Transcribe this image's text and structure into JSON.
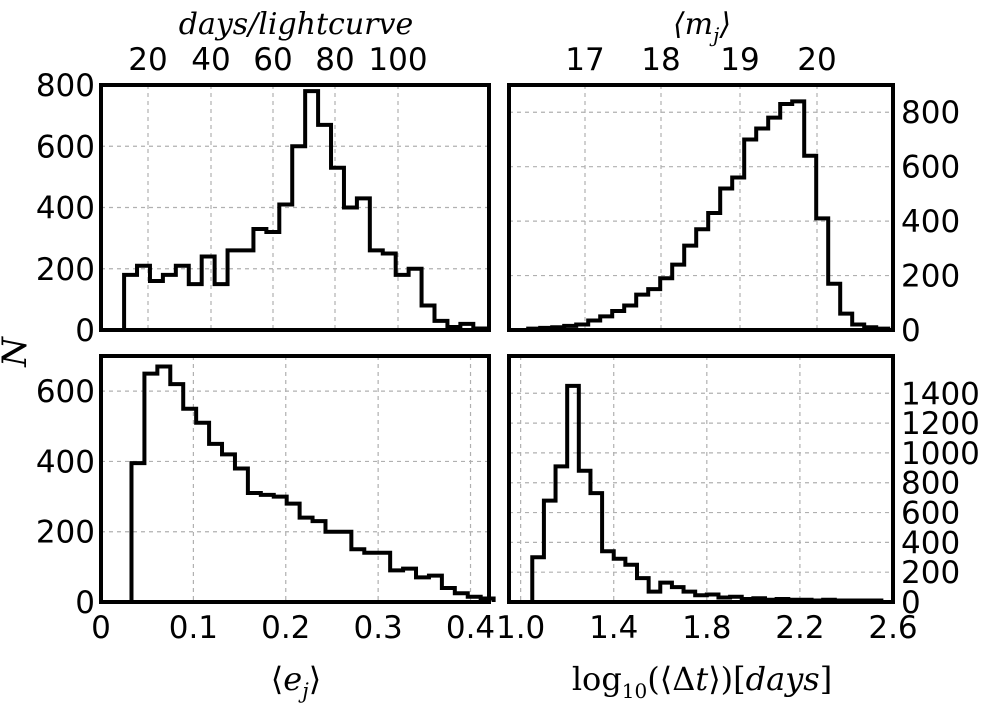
{
  "figure": {
    "ylabel": "N",
    "top_left_label": "days/lightcurve",
    "top_right_label": "⟨m_j⟩",
    "bottom_left_label": "⟨e_j⟩",
    "bottom_right_label": "log₁₀(⟨Δt⟩)[days]"
  },
  "chart_data": [
    {
      "id": "top-left",
      "type": "bar",
      "style": "step-histogram",
      "xlabel_top": "days/lightcurve",
      "xlim": [
        0,
        0.42
      ],
      "ylim": [
        0,
        800
      ],
      "y_ticks": [
        0,
        200,
        400,
        600,
        800
      ],
      "top_ticks": [
        "20",
        "40",
        "60",
        "80",
        "100"
      ],
      "bin_edges": [
        0.025,
        0.039,
        0.053,
        0.067,
        0.081,
        0.095,
        0.109,
        0.123,
        0.137,
        0.151,
        0.165,
        0.179,
        0.193,
        0.207,
        0.221,
        0.235,
        0.249,
        0.263,
        0.277,
        0.291,
        0.305,
        0.319,
        0.333,
        0.347,
        0.361,
        0.375,
        0.389,
        0.403,
        0.417
      ],
      "values": [
        180,
        210,
        160,
        180,
        210,
        150,
        240,
        150,
        260,
        260,
        330,
        320,
        410,
        600,
        780,
        670,
        530,
        400,
        430,
        260,
        250,
        180,
        200,
        80,
        30,
        10,
        20,
        5
      ],
      "grid": true
    },
    {
      "id": "top-right",
      "type": "bar",
      "style": "step-histogram",
      "xlabel_top": "⟨m_j⟩",
      "xlim": [
        1.0,
        2.6
      ],
      "ylim": [
        0,
        900
      ],
      "y_ticks": [
        0,
        200,
        400,
        600,
        800
      ],
      "top_ticks": [
        "17",
        "18",
        "19",
        "20"
      ],
      "bin_edges": [
        1.08,
        1.13,
        1.18,
        1.23,
        1.28,
        1.33,
        1.38,
        1.43,
        1.48,
        1.53,
        1.58,
        1.63,
        1.68,
        1.73,
        1.78,
        1.83,
        1.88,
        1.93,
        1.98,
        2.03,
        2.08,
        2.13,
        2.18,
        2.23,
        2.28,
        2.33,
        2.38,
        2.43,
        2.48,
        2.53,
        2.58
      ],
      "values": [
        5,
        8,
        10,
        15,
        20,
        35,
        50,
        70,
        90,
        130,
        150,
        190,
        240,
        310,
        370,
        430,
        520,
        560,
        700,
        740,
        780,
        830,
        840,
        640,
        410,
        170,
        60,
        20,
        10,
        5
      ],
      "grid": true
    },
    {
      "id": "bottom-left",
      "type": "bar",
      "style": "step-histogram",
      "xlabel": "⟨e_j⟩",
      "xlim": [
        0,
        0.42
      ],
      "ylim": [
        0,
        700
      ],
      "x_ticks": [
        0,
        0.1,
        0.2,
        0.3,
        0.4
      ],
      "x_tick_labels": [
        "0",
        "0.1",
        "0.2",
        "0.3",
        "0.4"
      ],
      "y_ticks": [
        0,
        200,
        400,
        600
      ],
      "bin_edges": [
        0.033,
        0.047,
        0.061,
        0.075,
        0.089,
        0.103,
        0.117,
        0.131,
        0.145,
        0.159,
        0.173,
        0.187,
        0.201,
        0.215,
        0.229,
        0.243,
        0.257,
        0.271,
        0.285,
        0.299,
        0.313,
        0.327,
        0.341,
        0.355,
        0.369,
        0.383,
        0.397,
        0.411,
        0.425
      ],
      "values": [
        395,
        650,
        670,
        620,
        550,
        510,
        450,
        420,
        380,
        310,
        305,
        300,
        280,
        240,
        230,
        200,
        200,
        150,
        140,
        140,
        90,
        95,
        70,
        75,
        40,
        25,
        15,
        10
      ],
      "grid": true
    },
    {
      "id": "bottom-right",
      "type": "bar",
      "style": "step-histogram",
      "xlabel": "log₁₀(⟨Δt⟩)[days]",
      "xlim": [
        0.95,
        2.6
      ],
      "ylim": [
        0,
        1650
      ],
      "x_ticks": [
        1.0,
        1.4,
        1.8,
        2.2,
        2.6
      ],
      "x_tick_labels": [
        "1.0",
        "1.4",
        "1.8",
        "2.2",
        "2.6"
      ],
      "y_ticks": [
        0,
        200,
        400,
        600,
        800,
        1000,
        1200,
        1400
      ],
      "bin_edges": [
        1.05,
        1.1,
        1.15,
        1.2,
        1.25,
        1.3,
        1.35,
        1.4,
        1.45,
        1.5,
        1.55,
        1.6,
        1.65,
        1.7,
        1.75,
        1.8,
        1.85,
        1.9,
        1.95,
        2.0,
        2.05,
        2.1,
        2.15,
        2.2,
        2.25,
        2.3,
        2.35,
        2.4,
        2.45,
        2.5,
        2.55
      ],
      "values": [
        300,
        680,
        910,
        1450,
        880,
        730,
        340,
        290,
        250,
        160,
        70,
        130,
        100,
        70,
        45,
        50,
        30,
        35,
        20,
        25,
        15,
        20,
        15,
        15,
        10,
        15,
        10,
        10,
        10,
        10
      ],
      "grid": true
    }
  ]
}
